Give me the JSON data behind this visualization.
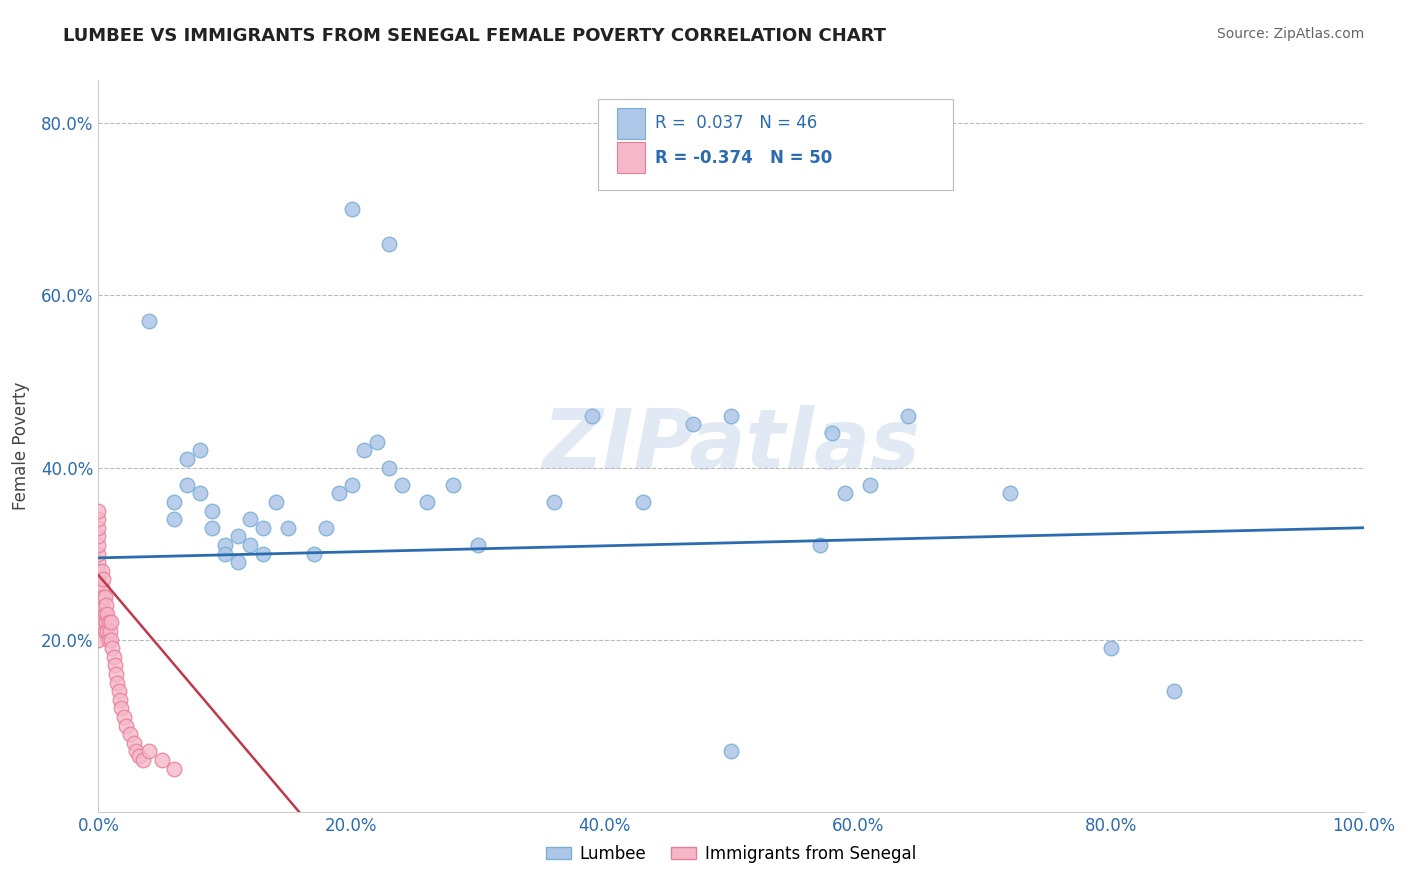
{
  "title": "LUMBEE VS IMMIGRANTS FROM SENEGAL FEMALE POVERTY CORRELATION CHART",
  "source": "Source: ZipAtlas.com",
  "ylabel": "Female Poverty",
  "xlim": [
    0.0,
    1.0
  ],
  "ylim": [
    0.0,
    0.85
  ],
  "xticks": [
    0.0,
    0.2,
    0.4,
    0.6,
    0.8,
    1.0
  ],
  "xticklabels": [
    "0.0%",
    "20.0%",
    "40.0%",
    "60.0%",
    "80.0%",
    "100.0%"
  ],
  "yticks": [
    0.2,
    0.4,
    0.6,
    0.8
  ],
  "yticklabels": [
    "20.0%",
    "40.0%",
    "60.0%",
    "80.0%"
  ],
  "lumbee_color": "#aec6e8",
  "lumbee_edge": "#7aafd4",
  "senegal_color": "#f5b8c8",
  "senegal_edge": "#e87d9a",
  "lumbee_line_color": "#2b6cb0",
  "senegal_line_color": "#c0394b",
  "background_color": "#ffffff",
  "grid_color": "#bbbbbb",
  "watermark": "ZIPatlas",
  "lumbee_R": "0.037",
  "lumbee_N": "46",
  "senegal_R": "-0.374",
  "senegal_N": "50",
  "legend_label_1": "Lumbee",
  "legend_label_2": "Immigrants from Senegal",
  "lumbee_x": [
    0.04,
    0.06,
    0.06,
    0.07,
    0.07,
    0.08,
    0.08,
    0.09,
    0.09,
    0.1,
    0.1,
    0.11,
    0.11,
    0.12,
    0.12,
    0.13,
    0.13,
    0.14,
    0.15,
    0.17,
    0.18,
    0.19,
    0.2,
    0.21,
    0.22,
    0.23,
    0.24,
    0.26,
    0.28,
    0.3,
    0.36,
    0.39,
    0.43,
    0.47,
    0.5,
    0.57,
    0.59,
    0.61,
    0.64,
    0.72,
    0.8,
    0.85,
    0.5,
    0.2,
    0.23,
    0.58
  ],
  "lumbee_y": [
    0.57,
    0.36,
    0.34,
    0.38,
    0.41,
    0.37,
    0.42,
    0.33,
    0.35,
    0.31,
    0.3,
    0.32,
    0.29,
    0.31,
    0.34,
    0.3,
    0.33,
    0.36,
    0.33,
    0.3,
    0.33,
    0.37,
    0.38,
    0.42,
    0.43,
    0.4,
    0.38,
    0.36,
    0.38,
    0.31,
    0.36,
    0.46,
    0.36,
    0.45,
    0.46,
    0.31,
    0.37,
    0.38,
    0.46,
    0.37,
    0.19,
    0.14,
    0.07,
    0.7,
    0.66,
    0.44
  ],
  "senegal_x": [
    0.0,
    0.0,
    0.0,
    0.0,
    0.0,
    0.0,
    0.0,
    0.0,
    0.0,
    0.0,
    0.0,
    0.0,
    0.0,
    0.0,
    0.0,
    0.003,
    0.003,
    0.003,
    0.004,
    0.004,
    0.005,
    0.005,
    0.005,
    0.006,
    0.006,
    0.007,
    0.007,
    0.008,
    0.008,
    0.009,
    0.01,
    0.01,
    0.011,
    0.012,
    0.013,
    0.014,
    0.015,
    0.016,
    0.017,
    0.018,
    0.02,
    0.022,
    0.025,
    0.028,
    0.03,
    0.032,
    0.035,
    0.04,
    0.05,
    0.06
  ],
  "senegal_y": [
    0.27,
    0.29,
    0.3,
    0.31,
    0.32,
    0.33,
    0.34,
    0.35,
    0.26,
    0.28,
    0.25,
    0.23,
    0.22,
    0.21,
    0.2,
    0.28,
    0.26,
    0.24,
    0.27,
    0.25,
    0.25,
    0.23,
    0.21,
    0.24,
    0.22,
    0.23,
    0.21,
    0.22,
    0.2,
    0.21,
    0.22,
    0.2,
    0.19,
    0.18,
    0.17,
    0.16,
    0.15,
    0.14,
    0.13,
    0.12,
    0.11,
    0.1,
    0.09,
    0.08,
    0.07,
    0.065,
    0.06,
    0.07,
    0.06,
    0.05
  ]
}
